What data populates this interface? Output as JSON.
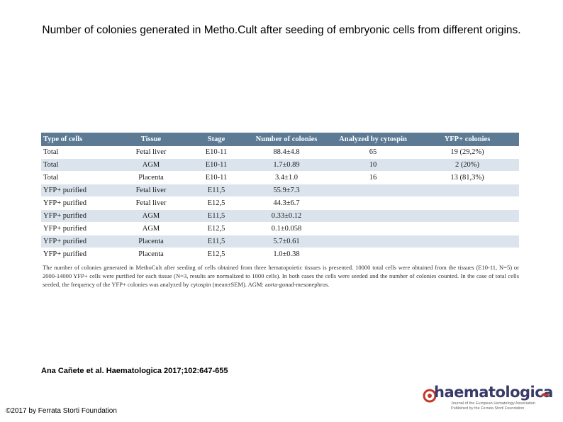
{
  "title": "Number of colonies generated in Metho.Cult after seeding of embryonic cells from different origins.",
  "table": {
    "headers": [
      "Type of cells",
      "Tissue",
      "Stage",
      "Number of colonies",
      "Analyzed by cytospin",
      "YFP+ colonies"
    ],
    "rows": [
      [
        "Total",
        "Fetal liver",
        "E10-11",
        "88.4±4.8",
        "65",
        "19 (29,2%)"
      ],
      [
        "Total",
        "AGM",
        "E10-11",
        "1.7±0.89",
        "10",
        "2 (20%)"
      ],
      [
        "Total",
        "Placenta",
        "E10-11",
        "3.4±1.0",
        "16",
        "13 (81,3%)"
      ],
      [
        "YFP+ purified",
        "Fetal liver",
        "E11,5",
        "55.9±7.3",
        "",
        ""
      ],
      [
        "YFP+ purified",
        "Fetal liver",
        "E12,5",
        "44.3±6.7",
        "",
        ""
      ],
      [
        "YFP+ purified",
        "AGM",
        "E11,5",
        "0.33±0.12",
        "",
        ""
      ],
      [
        "YFP+ purified",
        "AGM",
        "E12,5",
        "0.1±0.058",
        "",
        ""
      ],
      [
        "YFP+ purified",
        "Placenta",
        "E11,5",
        "5.7±0.61",
        "",
        ""
      ],
      [
        "YFP+ purified",
        "Placenta",
        "E12,5",
        "1.0±0.38",
        "",
        ""
      ]
    ]
  },
  "caption": "The number of colonies generated in MethoCult after seeding of cells obtained from three hematopoietic tissues is presented. 10000 total cells were obtained from the tissues (E10-11, N=5) or 2000-14000 YFP+ cells were purified for each tissue (N=3, results are normalized to 1000 cells). In both cases the cells were seeded and the number of colonies counted. In the case of total cells seeded, the frequency of the YFP+ colonies was analyzed by cytospin (mean±SEM). AGM: aorta-gonad-mesonephros.",
  "citation": "Ana Cañete et al. Haematologica 2017;102:647-655",
  "copyright": "©2017 by Ferrata Storti Foundation",
  "logo": {
    "word": "haematologica",
    "sub_line1": "Journal of the European Hematology Association",
    "sub_line2": "Published by the Ferrata Storti Foundation"
  },
  "colors": {
    "header_bg": "#5c7a93",
    "row_alt": "#dbe4ed",
    "logo_accent": "#c0392b"
  }
}
